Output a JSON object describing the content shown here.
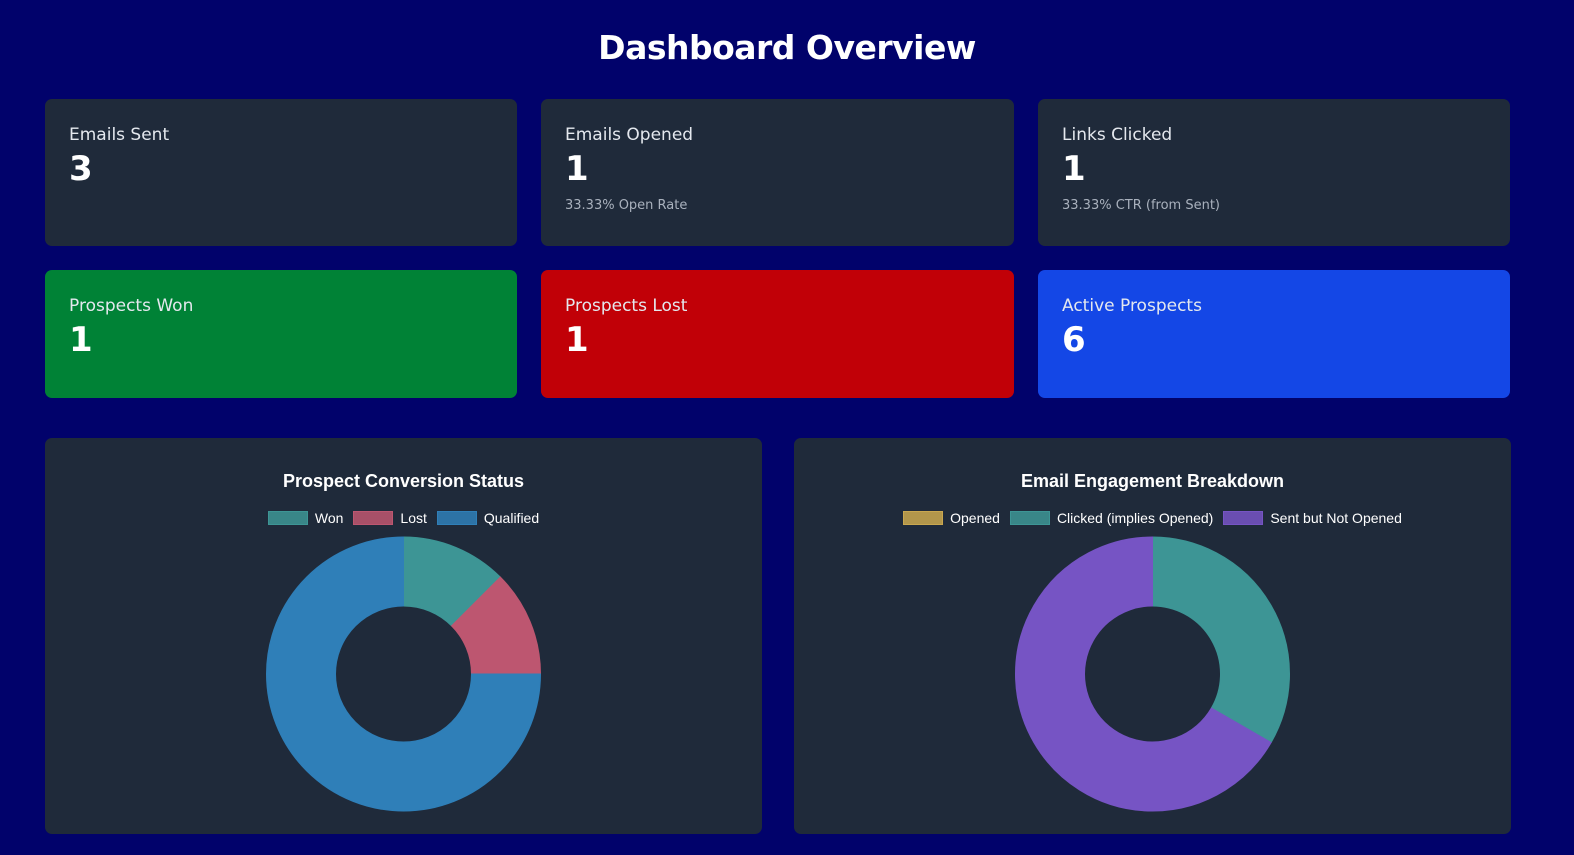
{
  "page": {
    "title": "Dashboard Overview"
  },
  "stats": {
    "emails_sent": {
      "label": "Emails Sent",
      "value": "3"
    },
    "emails_opened": {
      "label": "Emails Opened",
      "value": "1",
      "sub": "33.33% Open Rate"
    },
    "links_clicked": {
      "label": "Links Clicked",
      "value": "1",
      "sub": "33.33% CTR (from Sent)"
    },
    "prospects_won": {
      "label": "Prospects Won",
      "value": "1",
      "color": "#008236"
    },
    "prospects_lost": {
      "label": "Prospects Lost",
      "value": "1",
      "color": "#c10007"
    },
    "active_prospects": {
      "label": "Active Prospects",
      "value": "6",
      "color": "#1447e6"
    }
  },
  "chart_data": [
    {
      "type": "pie",
      "variant": "doughnut",
      "title": "Prospect Conversion Status",
      "categories": [
        "Won",
        "Lost",
        "Qualified"
      ],
      "values": [
        1,
        1,
        6
      ],
      "colors": [
        "#3d9595",
        "#bd5670",
        "#2f7fb8"
      ],
      "legend": "top"
    },
    {
      "type": "pie",
      "variant": "doughnut",
      "title": "Email Engagement Breakdown",
      "categories": [
        "Opened",
        "Clicked (implies Opened)",
        "Sent but Not Opened"
      ],
      "values": [
        0,
        1,
        2
      ],
      "colors": [
        "#c9a74f",
        "#3d9595",
        "#7654c4"
      ],
      "legend": "top"
    }
  ]
}
